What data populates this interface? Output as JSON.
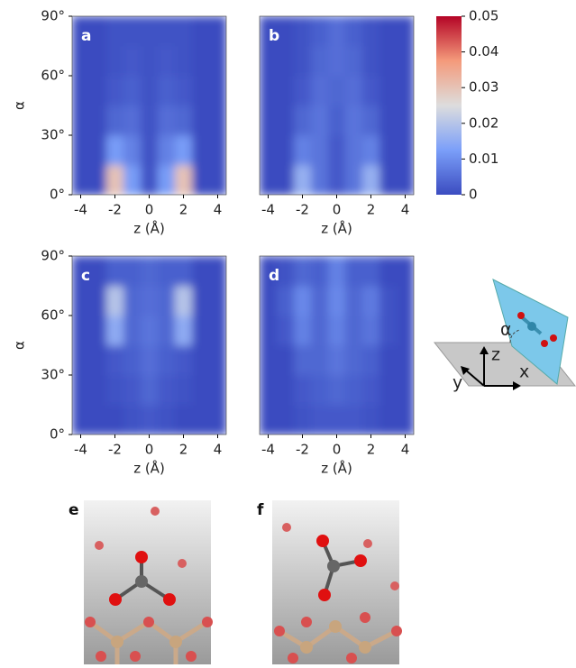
{
  "chart_data": [
    {
      "type": "heatmap",
      "panel_label": "a",
      "xlabel": "z (Å)",
      "ylabel": "α",
      "xlim": [
        -4.5,
        4.5
      ],
      "xticks": [
        -4,
        -2,
        0,
        2,
        4
      ],
      "ylim": [
        0,
        90
      ],
      "yticks": [
        {
          "value": 0,
          "label": "0°"
        },
        {
          "value": 30,
          "label": "30°"
        },
        {
          "value": 60,
          "label": "60°"
        },
        {
          "value": 90,
          "label": "90°"
        }
      ],
      "xbins": [
        -4.5,
        -3.5,
        -2.5,
        -1.5,
        -0.5,
        0.5,
        1.5,
        2.5,
        3.5,
        4.5
      ],
      "ybins": [
        0,
        15,
        30,
        45,
        60,
        75,
        90
      ],
      "z": [
        [
          0,
          0,
          0.03,
          0.012,
          0.001,
          0.012,
          0.03,
          0,
          0
        ],
        [
          0,
          0,
          0.012,
          0.008,
          0.001,
          0.008,
          0.012,
          0,
          0
        ],
        [
          0,
          0,
          0.004,
          0.005,
          0.001,
          0.005,
          0.004,
          0,
          0
        ],
        [
          0,
          0,
          0.002,
          0.003,
          0.001,
          0.003,
          0.002,
          0,
          0
        ],
        [
          0,
          0,
          0.001,
          0.002,
          0.001,
          0.002,
          0.001,
          0,
          0
        ],
        [
          0,
          0,
          0.001,
          0.001,
          0.001,
          0.001,
          0.001,
          0,
          0
        ]
      ]
    },
    {
      "type": "heatmap",
      "panel_label": "b",
      "xlabel": "z (Å)",
      "xlim": [
        -4.5,
        4.5
      ],
      "xticks": [
        -4,
        -2,
        0,
        2,
        4
      ],
      "ylim": [
        0,
        90
      ],
      "xbins": [
        -4.5,
        -3.5,
        -2.5,
        -1.5,
        -0.5,
        0.5,
        1.5,
        2.5,
        3.5,
        4.5
      ],
      "ybins": [
        0,
        15,
        30,
        45,
        60,
        75,
        90
      ],
      "z": [
        [
          0,
          0,
          0.016,
          0.006,
          0.002,
          0.006,
          0.016,
          0,
          0
        ],
        [
          0,
          0,
          0.008,
          0.006,
          0.002,
          0.006,
          0.008,
          0,
          0
        ],
        [
          0,
          0,
          0.004,
          0.006,
          0.003,
          0.006,
          0.004,
          0,
          0
        ],
        [
          0,
          0,
          0.002,
          0.005,
          0.004,
          0.005,
          0.002,
          0,
          0
        ],
        [
          0,
          0,
          0.001,
          0.004,
          0.005,
          0.004,
          0.001,
          0,
          0
        ],
        [
          0,
          0,
          0.001,
          0.003,
          0.005,
          0.003,
          0.001,
          0,
          0
        ]
      ]
    },
    {
      "type": "heatmap",
      "panel_label": "c",
      "xlabel": "z (Å)",
      "ylabel": "α",
      "xlim": [
        -4.5,
        4.5
      ],
      "xticks": [
        -4,
        -2,
        0,
        2,
        4
      ],
      "ylim": [
        0,
        90
      ],
      "yticks": [
        {
          "value": 0,
          "label": "0°"
        },
        {
          "value": 30,
          "label": "30°"
        },
        {
          "value": 60,
          "label": "60°"
        },
        {
          "value": 90,
          "label": "90°"
        }
      ],
      "xbins": [
        -4.5,
        -3.5,
        -2.5,
        -1.5,
        -0.5,
        0.5,
        1.5,
        2.5,
        3.5,
        4.5
      ],
      "ybins": [
        0,
        15,
        30,
        45,
        60,
        75,
        90
      ],
      "z": [
        [
          0,
          0,
          0,
          0.001,
          0.002,
          0.001,
          0,
          0,
          0
        ],
        [
          0,
          0,
          0.001,
          0.002,
          0.004,
          0.002,
          0.001,
          0,
          0
        ],
        [
          0,
          0,
          0.002,
          0.003,
          0.005,
          0.003,
          0.002,
          0,
          0
        ],
        [
          0,
          0,
          0.015,
          0.004,
          0.006,
          0.004,
          0.015,
          0,
          0
        ],
        [
          0,
          0,
          0.02,
          0.004,
          0.005,
          0.004,
          0.02,
          0,
          0
        ],
        [
          0,
          0,
          0.003,
          0.003,
          0.004,
          0.003,
          0.003,
          0,
          0
        ]
      ]
    },
    {
      "type": "heatmap",
      "panel_label": "d",
      "xlabel": "z (Å)",
      "xlim": [
        -4.5,
        4.5
      ],
      "xticks": [
        -4,
        -2,
        0,
        2,
        4
      ],
      "ylim": [
        0,
        90
      ],
      "xbins": [
        -4.5,
        -3.5,
        -2.5,
        -1.5,
        -0.5,
        0.5,
        1.5,
        2.5,
        3.5,
        4.5
      ],
      "ybins": [
        0,
        15,
        30,
        45,
        60,
        75,
        90
      ],
      "z": [
        [
          0,
          0,
          0.001,
          0.002,
          0.002,
          0.002,
          0.001,
          0,
          0
        ],
        [
          0,
          0,
          0.002,
          0.003,
          0.004,
          0.003,
          0.002,
          0,
          0
        ],
        [
          0,
          0,
          0.004,
          0.004,
          0.006,
          0.004,
          0.003,
          0,
          0
        ],
        [
          0,
          0.002,
          0.008,
          0.004,
          0.008,
          0.004,
          0.006,
          0.001,
          0
        ],
        [
          0,
          0.003,
          0.009,
          0.004,
          0.009,
          0.004,
          0.007,
          0.001,
          0
        ],
        [
          0,
          0.001,
          0.004,
          0.003,
          0.008,
          0.003,
          0.003,
          0,
          0
        ]
      ]
    }
  ],
  "colorbar": {
    "lim": [
      0,
      0.05
    ],
    "ticks": [
      0,
      0.01,
      0.02,
      0.03,
      0.04,
      0.05
    ],
    "colormap": [
      "#3b4cc0",
      "#7b9ff9",
      "#dddddd",
      "#f49a7b",
      "#b40426"
    ]
  },
  "schematic": {
    "angle": "α",
    "z_axis": "z",
    "x_axis": "x",
    "y_axis": "y"
  },
  "images": [
    {
      "label": "e"
    },
    {
      "label": "f"
    }
  ]
}
